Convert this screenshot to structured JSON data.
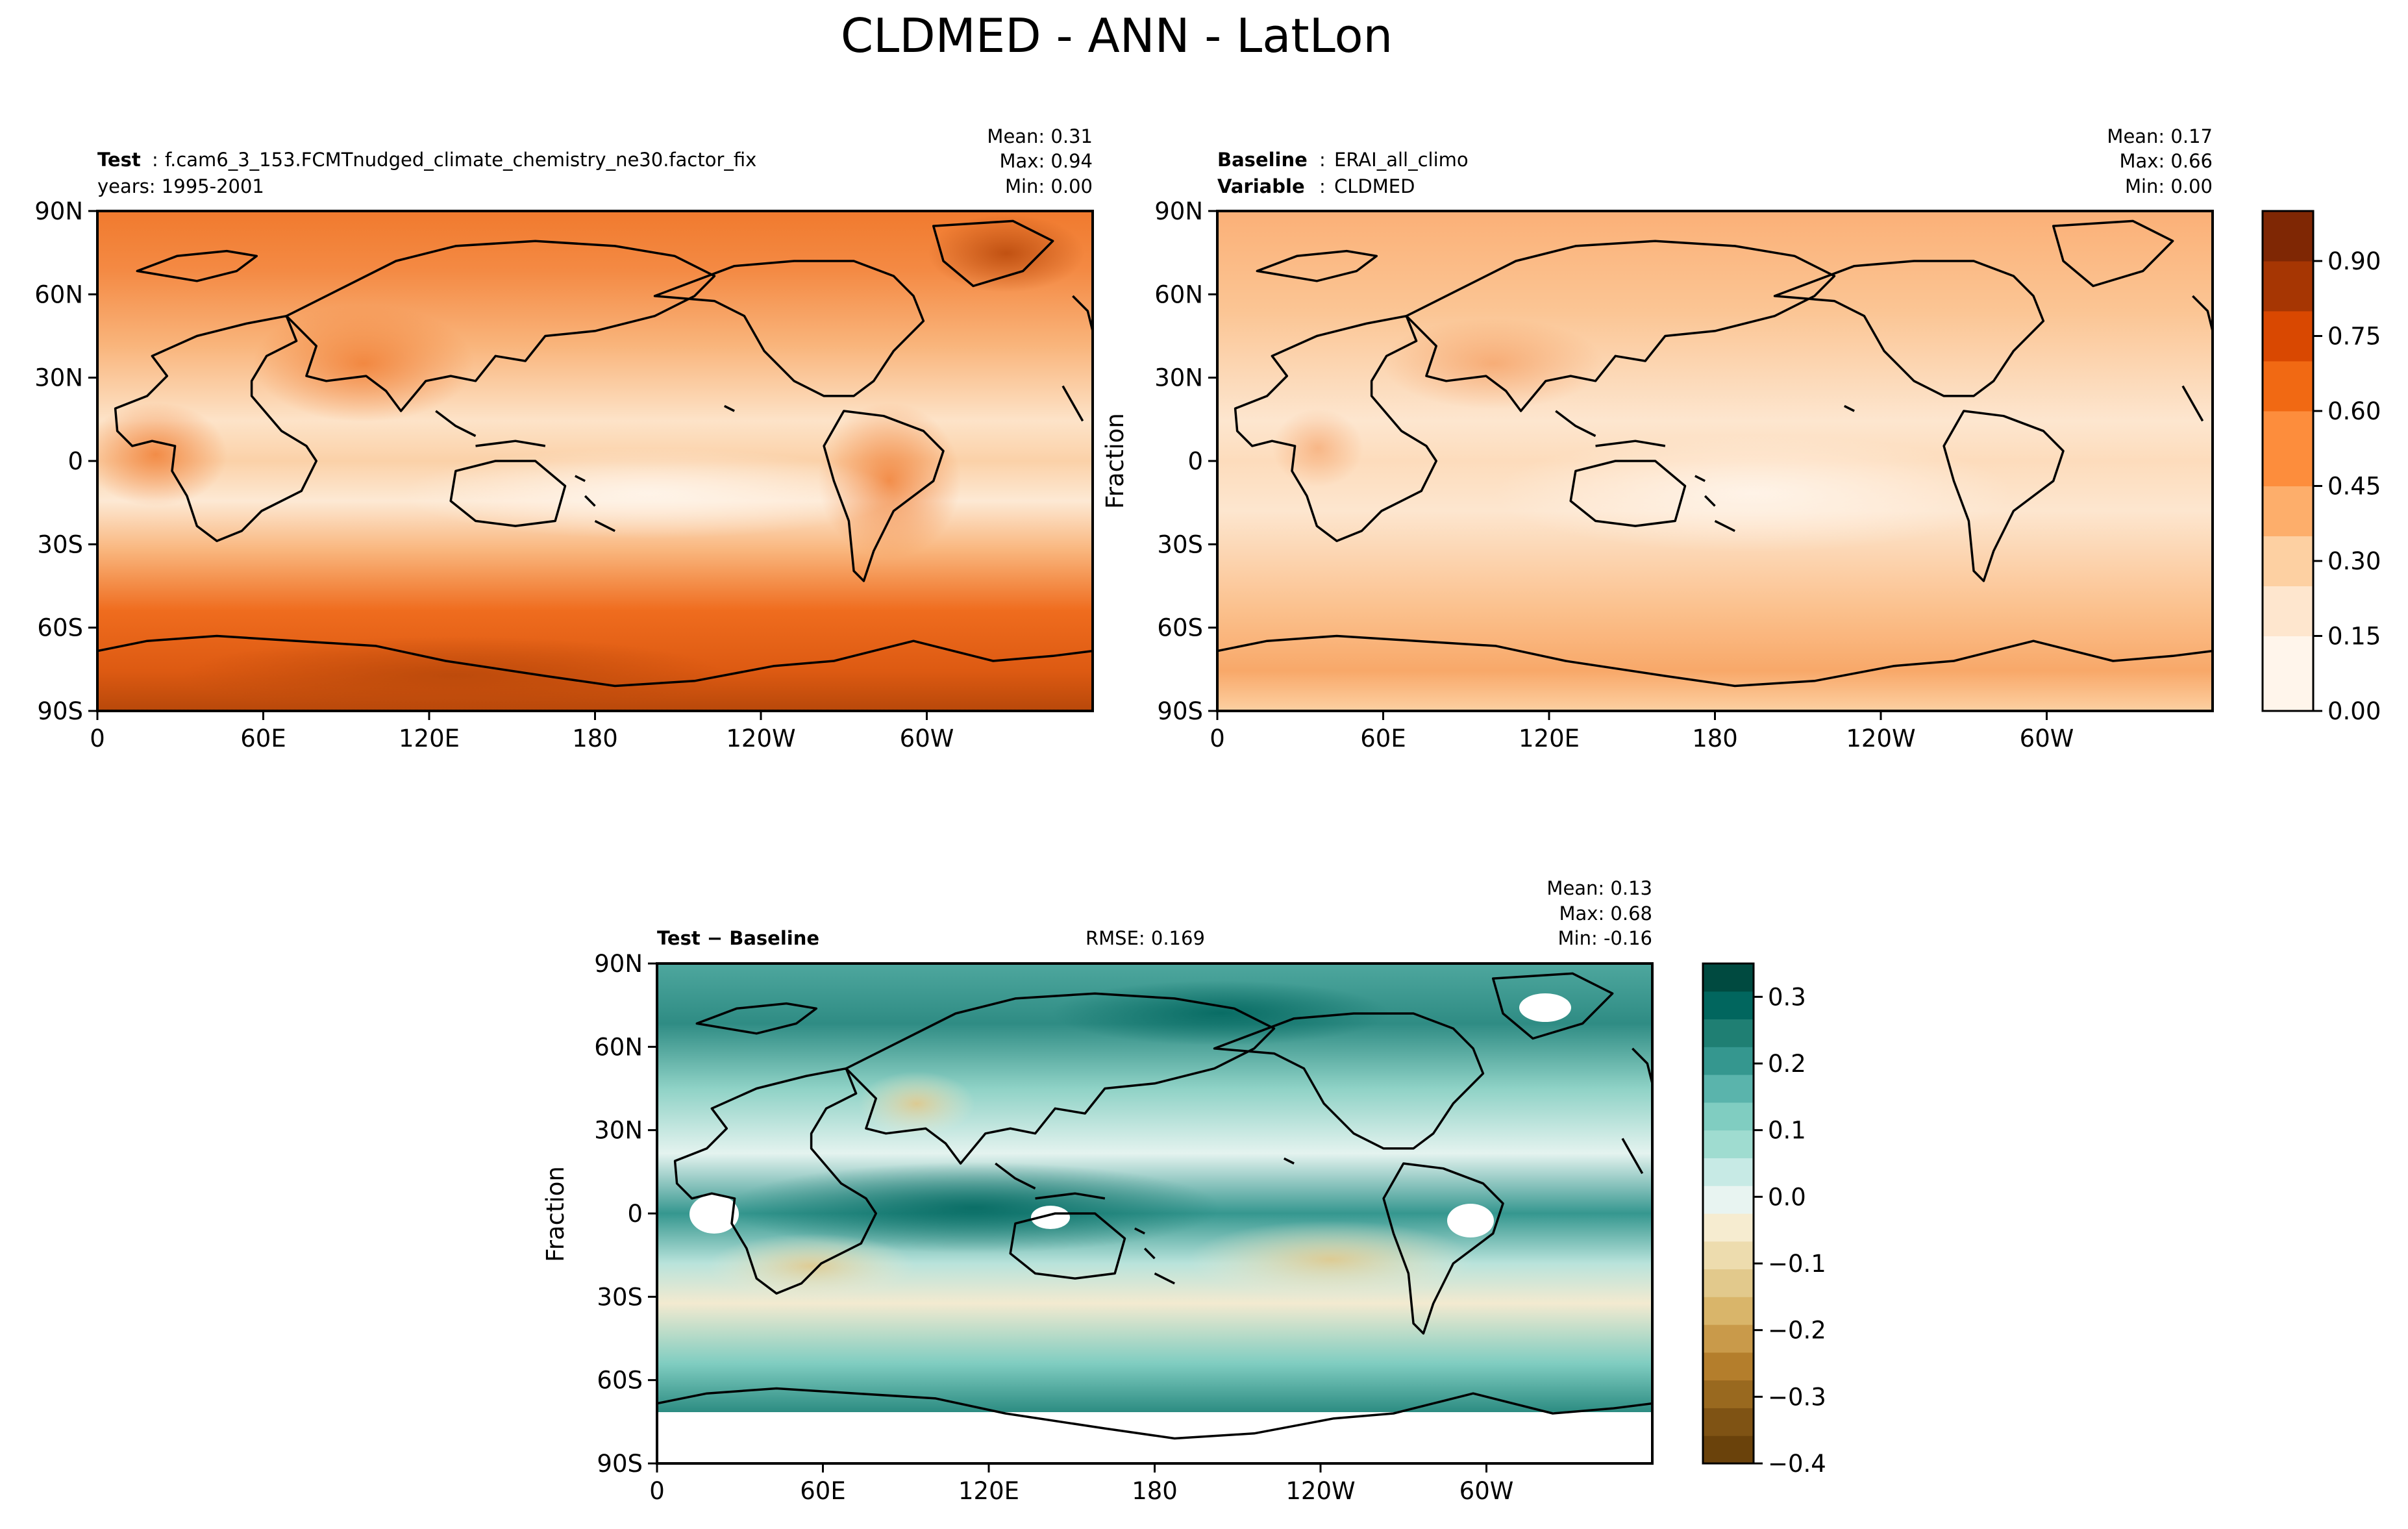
{
  "figure_title": "CLDMED - ANN - LatLon",
  "chart_data": [
    {
      "type": "heatmap",
      "panel": "test",
      "lead_label": "Test",
      "lead_value": "f.cam6_3_153.FCMTnudged_climate_chemistry_ne30.factor_fix",
      "years": "years: 1995-2001",
      "stats": {
        "mean": "Mean:  0.31",
        "max": "Max:  0.94",
        "min": "Min:  0.00"
      },
      "xlim": [
        0,
        360
      ],
      "ylim": [
        -90,
        90
      ],
      "xticks": [
        "0",
        "60E",
        "120E",
        "180",
        "120W",
        "60W"
      ],
      "yticks": [
        "90N",
        "60N",
        "30N",
        "0",
        "30S",
        "60S",
        "90S"
      ],
      "ylabel": "",
      "colormap": "Oranges"
    },
    {
      "type": "heatmap",
      "panel": "baseline",
      "lead_label": "Baseline",
      "lead_value": "ERAI_all_climo",
      "variable_label": "Variable",
      "variable_value": "CLDMED",
      "stats": {
        "mean": "Mean:  0.17",
        "max": "Max:  0.66",
        "min": "Min:  0.00"
      },
      "xlim": [
        0,
        360
      ],
      "ylim": [
        -90,
        90
      ],
      "xticks": [
        "0",
        "60E",
        "120E",
        "180",
        "120W",
        "60W"
      ],
      "yticks": [
        "90N",
        "60N",
        "30N",
        "0",
        "30S",
        "60S",
        "90S"
      ],
      "ylabel": "Fraction",
      "colormap": "Oranges",
      "colorbar_range": [
        0,
        1.0
      ],
      "colorbar_ticks": [
        "0.00",
        "0.15",
        "0.30",
        "0.45",
        "0.60",
        "0.75",
        "0.90"
      ]
    },
    {
      "type": "heatmap",
      "panel": "difference",
      "lead_label": "Test − Baseline",
      "rmse": "RMSE: 0.169",
      "stats": {
        "mean": "Mean:  0.13",
        "max": "Max:  0.68",
        "min": "Min: -0.16"
      },
      "xlim": [
        0,
        360
      ],
      "ylim": [
        -90,
        90
      ],
      "xticks": [
        "0",
        "60E",
        "120E",
        "180",
        "120W",
        "60W"
      ],
      "yticks": [
        "90N",
        "60N",
        "30N",
        "0",
        "30S",
        "60S",
        "90S"
      ],
      "ylabel": "Fraction",
      "colormap": "BrBG",
      "colorbar_range": [
        -0.4,
        0.35
      ],
      "colorbar_ticks": [
        "0.3",
        "0.2",
        "0.1",
        "0.0",
        "−0.1",
        "−0.2",
        "−0.3",
        "−0.4"
      ]
    }
  ],
  "colors": {
    "oranges": [
      "#fff5eb",
      "#fee6ce",
      "#fdd0a2",
      "#fdae6b",
      "#fd8d3c",
      "#f16913",
      "#d94801",
      "#a63603",
      "#7f2704"
    ],
    "brbg_pos": [
      "#e8f4f1",
      "#c7eae5",
      "#9fdcd0",
      "#80cdc1",
      "#5ab4ac",
      "#35978f",
      "#1f7f73",
      "#01665e",
      "#004a40"
    ],
    "brbg_neg": [
      "#f6ecd0",
      "#eddcae",
      "#e2c98c",
      "#d9b56a",
      "#c99a4a",
      "#b47e2c",
      "#99691f",
      "#7f5314",
      "#6a420b"
    ]
  }
}
